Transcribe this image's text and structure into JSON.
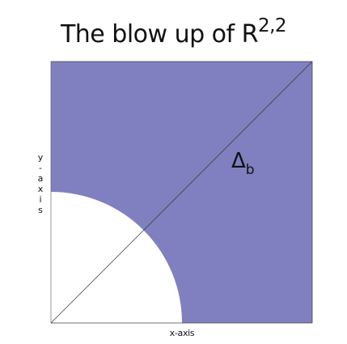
{
  "title": {
    "text": "The blow up of R",
    "superscript": "2,2"
  },
  "axes": {
    "x_label": "x-axis",
    "y_label": "y-axis"
  },
  "region": {
    "symbol": "Δ",
    "subscript": "b",
    "fill_color": "#8080c0",
    "excluded_color": "#ffffff"
  },
  "line_color": "#333333"
}
